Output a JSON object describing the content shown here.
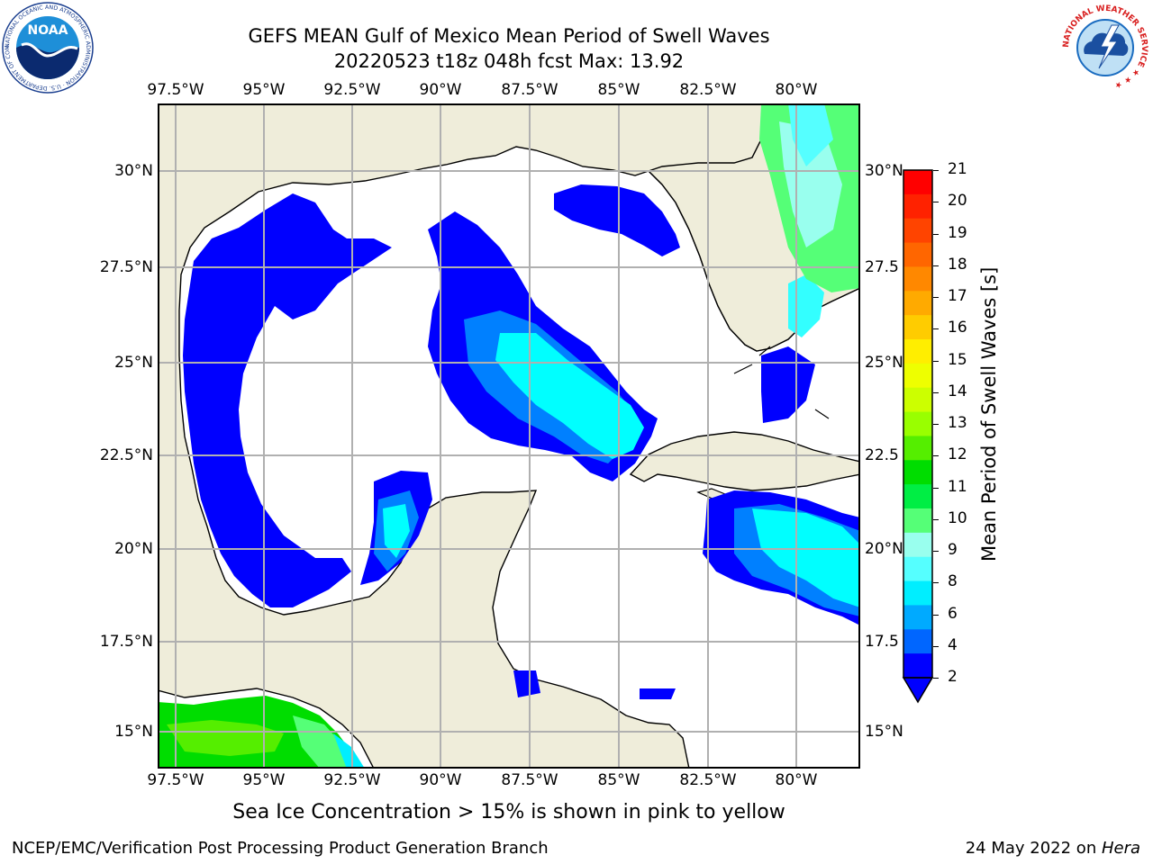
{
  "title": {
    "line1": "GEFS MEAN Gulf of Mexico Mean Period of Swell Waves",
    "line2": "20220523 t18z 048h fcst   Max: 13.92"
  },
  "map": {
    "lon_ticks": [
      "97.5°W",
      "95°W",
      "92.5°W",
      "90°W",
      "87.5°W",
      "85°W",
      "82.5°W",
      "80°W"
    ],
    "lat_ticks_left": [
      "30°N",
      "27.5°N",
      "25°N",
      "22.5°N",
      "20°N",
      "17.5°N",
      "15°N"
    ],
    "lat_ticks_right": [
      "30°N",
      "27.5",
      "25°N",
      "22.5",
      "20°N",
      "17.5",
      "15°N"
    ],
    "colors": {
      "land": "#efedda",
      "ocean": "#ffffff",
      "grid": "#b0b0b0",
      "coast": "#000000"
    }
  },
  "colorbar": {
    "label": "Mean Period of Swell Waves [s]",
    "ticks": [
      "21",
      "20",
      "19",
      "18",
      "17",
      "16",
      "15",
      "14",
      "13",
      "12",
      "11",
      "10",
      "9",
      "8",
      "6",
      "4",
      "2"
    ],
    "colors": [
      "#ff0000",
      "#ff2200",
      "#ff4400",
      "#ff6600",
      "#ff8800",
      "#ffaa00",
      "#ffcc00",
      "#ffee00",
      "#eeff00",
      "#ccff00",
      "#99ff00",
      "#55ee00",
      "#00dd00",
      "#00ee44",
      "#55ff77",
      "#99ffee",
      "#55ffff",
      "#00eeff",
      "#00aaff",
      "#0066ff",
      "#0000ff"
    ]
  },
  "caption": "Sea Ice Concentration > 15% is shown in pink to yellow",
  "footer": {
    "left": "NCEP/EMC/Verification Post Processing Product Generation Branch",
    "right_prefix": "24 May 2022 on ",
    "right_italic": "Hera"
  },
  "logos": {
    "noaa_text": "NOAA",
    "noaa_ring": "NATIONAL OCEANIC AND ATMOSPHERIC ADMINISTRATION · U.S. DEPARTMENT OF COMMERCE ·",
    "nws_ring": "NATIONAL WEATHER SERVICE ★ ★ ★"
  }
}
